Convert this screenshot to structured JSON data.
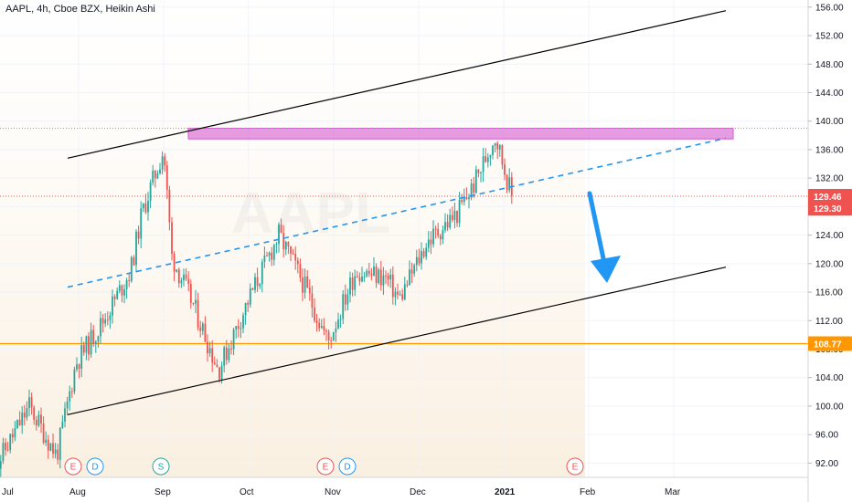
{
  "header": {
    "title": "AAPL, 4h, Cboe BZX, Heikin Ashi"
  },
  "watermark": {
    "text": "AAPL"
  },
  "colors": {
    "up": "#26a69a",
    "down": "#ef5350",
    "channel": "#000000",
    "midline": "#2196f3",
    "resistance": "#d65ad1",
    "support": "#ff9800",
    "arrow": "#2196f3"
  },
  "price_badges": [
    {
      "label": "129.46",
      "value": 129.46,
      "color": "#ef5350"
    },
    {
      "label": "129.30",
      "value": 129.3,
      "color": "#ef5350"
    },
    {
      "label": "108.77",
      "value": 108.77,
      "color": "#ff9800"
    }
  ],
  "events": [
    {
      "letter": "E",
      "date": "Jul 30",
      "color": "#ef5350"
    },
    {
      "letter": "D",
      "date": "Aug 7",
      "color": "#2196f3"
    },
    {
      "letter": "S",
      "date": "Aug 31",
      "color": "#26a69a"
    },
    {
      "letter": "E",
      "date": "Oct 29",
      "color": "#ef5350"
    },
    {
      "letter": "D",
      "date": "Nov 6",
      "color": "#2196f3"
    },
    {
      "letter": "E",
      "date": "Jan 27",
      "color": "#ef5350"
    }
  ],
  "chart_data": {
    "type": "candlestick",
    "title": "AAPL, 4h, Cboe BZX, Heikin Ashi",
    "x_axis": {
      "labels": [
        "Jul",
        "Aug",
        "Sep",
        "Oct",
        "Nov",
        "Dec",
        "2021",
        "Feb",
        "Mar"
      ]
    },
    "y_axis": {
      "range": [
        90,
        157
      ],
      "ticks": [
        "92.00",
        "96.00",
        "100.00",
        "104.00",
        "108.00",
        "112.00",
        "116.00",
        "120.00",
        "124.00",
        "128.00",
        "132.00",
        "136.00",
        "140.00",
        "144.00",
        "148.00",
        "152.00",
        "156.00"
      ]
    },
    "price_path": [
      {
        "date": "Jul 1",
        "price": 91
      },
      {
        "date": "Jul 14",
        "price": 100
      },
      {
        "date": "Jul 24",
        "price": 93
      },
      {
        "date": "Jul 31",
        "price": 106
      },
      {
        "date": "Aug 10",
        "price": 112
      },
      {
        "date": "Aug 20",
        "price": 119
      },
      {
        "date": "Aug 24",
        "price": 127
      },
      {
        "date": "Sep 1",
        "price": 136
      },
      {
        "date": "Sep 4",
        "price": 121
      },
      {
        "date": "Sep 12",
        "price": 114
      },
      {
        "date": "Sep 21",
        "price": 105
      },
      {
        "date": "Oct 1",
        "price": 115
      },
      {
        "date": "Oct 12",
        "price": 124
      },
      {
        "date": "Oct 20",
        "price": 118
      },
      {
        "date": "Oct 30",
        "price": 109
      },
      {
        "date": "Nov 9",
        "price": 119
      },
      {
        "date": "Nov 20",
        "price": 118
      },
      {
        "date": "Nov 25",
        "price": 115
      },
      {
        "date": "Dec 4",
        "price": 123
      },
      {
        "date": "Dec 15",
        "price": 127
      },
      {
        "date": "Dec 21",
        "price": 131
      },
      {
        "date": "Dec 29",
        "price": 138
      },
      {
        "date": "Jan 4",
        "price": 129.3
      }
    ],
    "levels": [
      {
        "name": "resistance zone",
        "from": 137.5,
        "to": 139
      },
      {
        "name": "support",
        "value": 108.77
      },
      {
        "name": "last price",
        "value": 129.46
      }
    ],
    "trendlines": [
      {
        "name": "channel upper",
        "from": {
          "date": "Jul 28",
          "price": 134.8
        },
        "to": {
          "date": "Mar 20",
          "price": 155.5
        }
      },
      {
        "name": "channel lower",
        "from": {
          "date": "Jul 28",
          "price": 98.8
        },
        "to": {
          "date": "Mar 20",
          "price": 119.5
        }
      },
      {
        "name": "channel mid",
        "from": {
          "date": "Jul 28",
          "price": 116.7
        },
        "to": {
          "date": "Mar 20",
          "price": 137.6
        }
      }
    ],
    "grid": true
  }
}
